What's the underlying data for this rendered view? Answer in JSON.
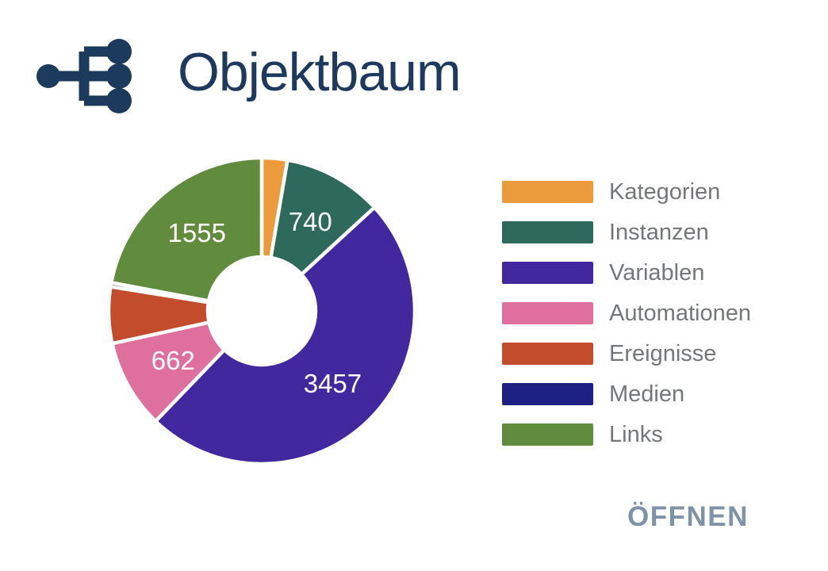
{
  "card": {
    "title": "Objektbaum",
    "action_label": "ÖFFNEN"
  },
  "colors": {
    "background": "#FFFFFF",
    "title": "#1D3A5E",
    "icon": "#1B3A5C",
    "action": "#7E92A8",
    "legend_text": "#747678",
    "slice_label": "#FFFFFF"
  },
  "chart_data": {
    "type": "pie",
    "subtype": "donut",
    "title": "Objektbaum",
    "legend_position": "right",
    "start_angle_deg": 0,
    "direction": "clockwise",
    "inner_radius_ratio": 0.35,
    "slice_border_color": "#FFFFFF",
    "slice_border_width": 4.5,
    "series": [
      {
        "name": "Kategorien",
        "value": 190,
        "color": "#EC9B3C",
        "label_visible": false,
        "value_estimated": true
      },
      {
        "name": "Instanzen",
        "value": 740,
        "color": "#2E6A5C",
        "label_visible": true
      },
      {
        "name": "Variablen",
        "value": 3457,
        "color": "#41289E",
        "label_visible": true
      },
      {
        "name": "Automationen",
        "value": 662,
        "color": "#DF709D",
        "label_visible": true
      },
      {
        "name": "Ereignisse",
        "value": 420,
        "color": "#C24C2B",
        "label_visible": false,
        "value_estimated": true
      },
      {
        "name": "Medien",
        "value": 30,
        "color": "#1E2183",
        "label_visible": false,
        "value_estimated": true
      },
      {
        "name": "Links",
        "value": 1555,
        "color": "#618B3D",
        "label_visible": true
      }
    ]
  }
}
